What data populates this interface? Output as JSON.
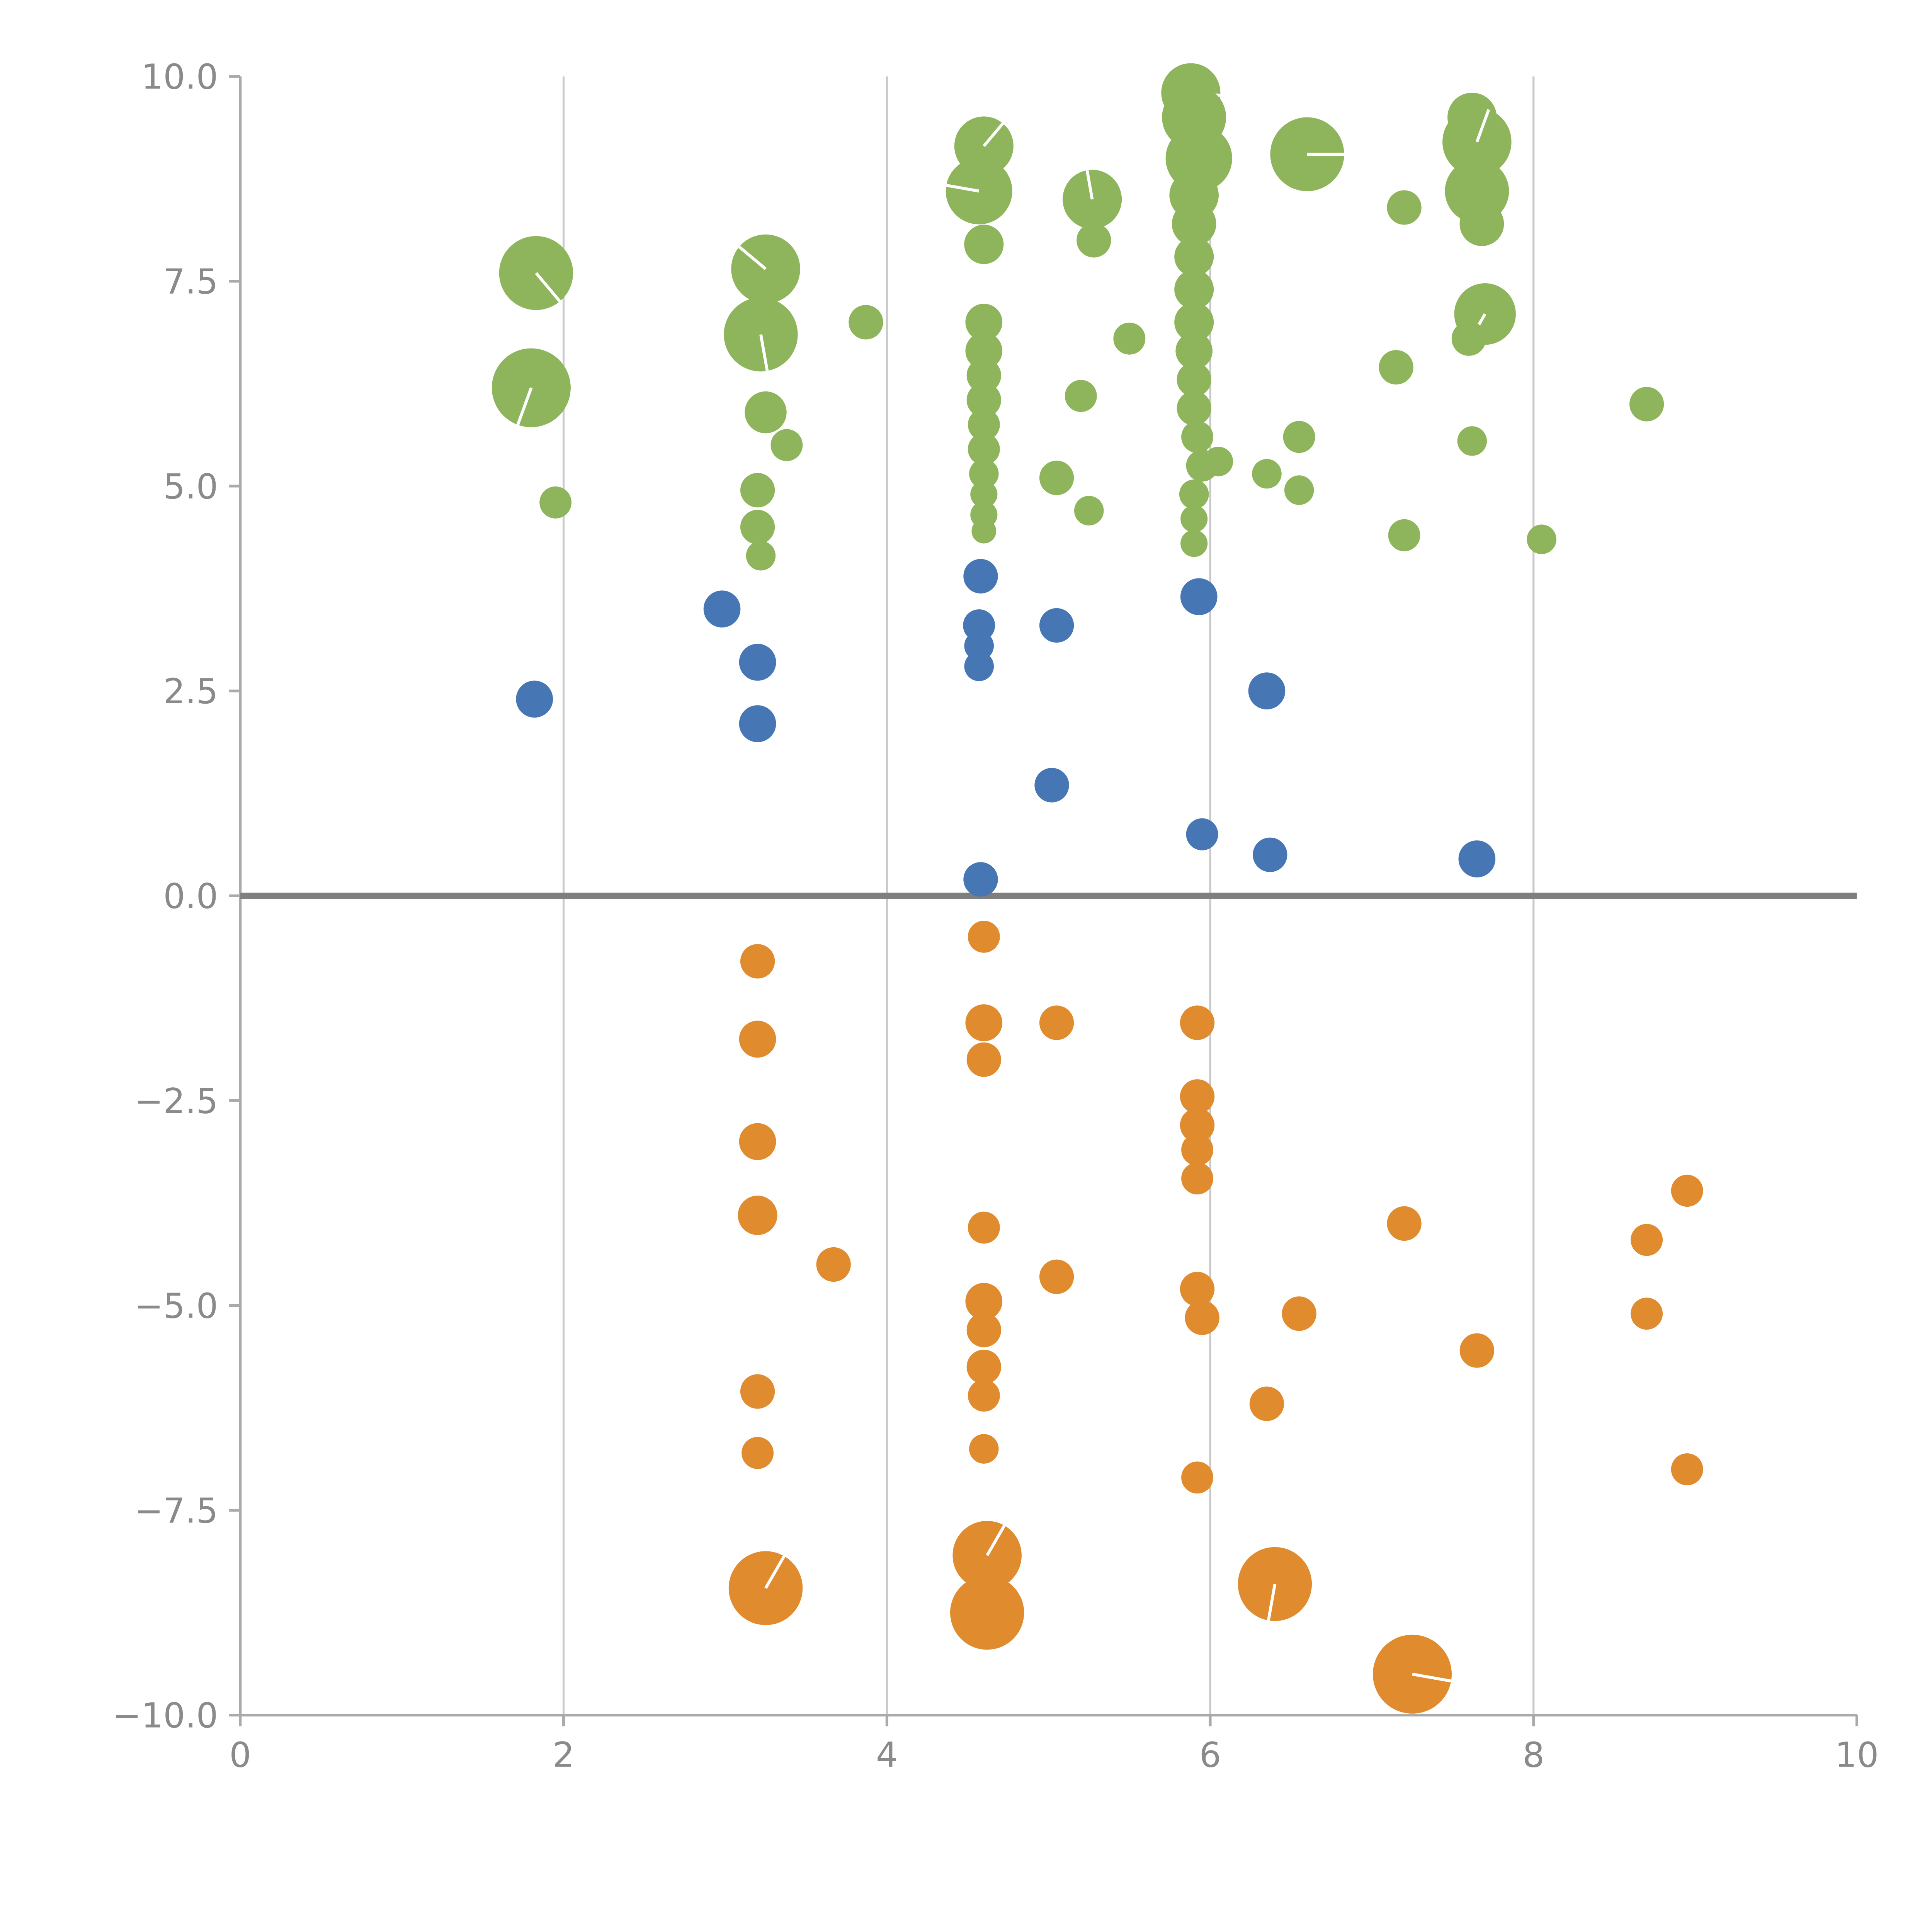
{
  "chart_data": {
    "type": "scatter",
    "title": "",
    "xlabel": "",
    "ylabel": "",
    "xlim": [
      0,
      10
    ],
    "ylim": [
      -10,
      10
    ],
    "x_ticks": [
      0,
      2,
      4,
      6,
      8,
      10
    ],
    "x_tick_labels": [
      "0",
      "2",
      "4",
      "6",
      "8",
      "10"
    ],
    "y_ticks": [
      -10,
      -7.5,
      -5,
      -2.5,
      0,
      2.5,
      5,
      7.5,
      10
    ],
    "y_tick_labels": [
      "−10.0",
      "−7.5",
      "−5.0",
      "−2.5",
      "0.0",
      "2.5",
      "5.0",
      "7.5",
      "10.0"
    ],
    "grid": "vertical",
    "zero_line": true,
    "legend": "none",
    "colors": {
      "grid": "#c9c9c9",
      "axis": "#aaaaaa",
      "zero_line": "#7f7f7f",
      "tick_text": "#8a8a8a",
      "bubble_line": "#ffffff"
    },
    "series": [
      {
        "name": "green",
        "color": "#8fb55c",
        "points": [
          [
            1.83,
            7.6,
            30,
            140
          ],
          [
            1.8,
            6.2,
            32,
            200
          ],
          [
            1.95,
            4.8,
            13
          ],
          [
            3.25,
            7.65,
            28,
            310
          ],
          [
            3.22,
            6.85,
            30,
            170
          ],
          [
            3.25,
            5.9,
            17
          ],
          [
            3.38,
            5.5,
            13
          ],
          [
            3.2,
            4.95,
            14
          ],
          [
            3.2,
            4.5,
            14
          ],
          [
            3.22,
            4.15,
            12
          ],
          [
            3.87,
            7.0,
            14
          ],
          [
            4.6,
            9.15,
            24,
            40
          ],
          [
            4.57,
            8.6,
            27,
            280
          ],
          [
            4.6,
            7.95,
            16
          ],
          [
            4.6,
            7.0,
            15
          ],
          [
            4.6,
            6.65,
            15
          ],
          [
            4.6,
            6.35,
            14
          ],
          [
            4.6,
            6.05,
            14
          ],
          [
            4.6,
            5.75,
            13
          ],
          [
            4.6,
            5.45,
            13
          ],
          [
            4.6,
            5.15,
            12
          ],
          [
            4.6,
            4.9,
            11
          ],
          [
            4.6,
            4.65,
            11
          ],
          [
            4.6,
            4.45,
            10
          ],
          [
            5.05,
            5.1,
            14
          ],
          [
            5.2,
            6.1,
            13
          ],
          [
            5.25,
            4.7,
            12
          ],
          [
            5.27,
            8.5,
            24,
            350
          ],
          [
            5.28,
            8.0,
            14
          ],
          [
            5.5,
            6.8,
            13
          ],
          [
            5.88,
            9.8,
            24,
            95
          ],
          [
            5.9,
            9.5,
            26
          ],
          [
            5.93,
            9.0,
            27
          ],
          [
            5.9,
            8.55,
            20
          ],
          [
            5.9,
            8.2,
            18
          ],
          [
            5.9,
            7.8,
            16
          ],
          [
            5.9,
            7.4,
            16
          ],
          [
            5.9,
            7.0,
            16
          ],
          [
            5.9,
            6.65,
            15
          ],
          [
            5.9,
            6.3,
            14
          ],
          [
            5.9,
            5.95,
            14
          ],
          [
            5.92,
            5.6,
            13
          ],
          [
            5.95,
            5.25,
            13
          ],
          [
            5.9,
            4.9,
            12
          ],
          [
            5.9,
            4.6,
            11
          ],
          [
            5.9,
            4.3,
            11
          ],
          [
            6.05,
            5.3,
            12
          ],
          [
            6.35,
            5.15,
            12
          ],
          [
            6.55,
            5.6,
            13
          ],
          [
            6.55,
            4.95,
            12
          ],
          [
            6.6,
            9.05,
            30,
            90
          ],
          [
            7.2,
            8.4,
            14
          ],
          [
            7.15,
            6.45,
            14
          ],
          [
            7.2,
            4.4,
            13
          ],
          [
            7.62,
            9.5,
            20
          ],
          [
            7.65,
            9.2,
            28,
            20
          ],
          [
            7.65,
            8.6,
            26
          ],
          [
            7.68,
            8.2,
            18
          ],
          [
            7.7,
            7.1,
            25,
            210
          ],
          [
            7.6,
            6.8,
            14
          ],
          [
            7.62,
            5.55,
            12
          ],
          [
            8.05,
            4.35,
            12
          ],
          [
            8.7,
            6.0,
            14
          ]
        ]
      },
      {
        "name": "blue",
        "color": "#4676b4",
        "points": [
          [
            1.82,
            2.4,
            15
          ],
          [
            2.98,
            3.5,
            15
          ],
          [
            3.2,
            2.85,
            15
          ],
          [
            3.2,
            2.1,
            15
          ],
          [
            4.58,
            3.9,
            14
          ],
          [
            4.57,
            3.3,
            13
          ],
          [
            4.57,
            3.05,
            12
          ],
          [
            4.57,
            2.8,
            12
          ],
          [
            5.05,
            3.3,
            14
          ],
          [
            5.02,
            1.35,
            14
          ],
          [
            5.93,
            3.65,
            15
          ],
          [
            5.95,
            0.75,
            13
          ],
          [
            6.35,
            2.5,
            15
          ],
          [
            6.37,
            0.5,
            14
          ],
          [
            7.65,
            0.45,
            15
          ],
          [
            4.58,
            0.2,
            14
          ]
        ]
      },
      {
        "name": "orange",
        "color": "#e08b2d",
        "points": [
          [
            3.2,
            -0.8,
            14
          ],
          [
            3.2,
            -1.75,
            15
          ],
          [
            3.2,
            -3.0,
            15
          ],
          [
            3.2,
            -3.9,
            16
          ],
          [
            3.67,
            -4.5,
            14
          ],
          [
            3.2,
            -6.05,
            14
          ],
          [
            3.2,
            -6.8,
            13
          ],
          [
            3.25,
            -8.45,
            30,
            30
          ],
          [
            4.6,
            -0.5,
            13
          ],
          [
            4.6,
            -1.55,
            15
          ],
          [
            4.6,
            -2.0,
            14
          ],
          [
            5.05,
            -1.55,
            14
          ],
          [
            4.6,
            -4.05,
            13
          ],
          [
            5.05,
            -4.65,
            14
          ],
          [
            4.6,
            -4.95,
            15
          ],
          [
            4.6,
            -5.3,
            14
          ],
          [
            4.6,
            -5.75,
            14
          ],
          [
            4.6,
            -6.1,
            13
          ],
          [
            4.6,
            -6.75,
            12
          ],
          [
            4.62,
            -8.05,
            28,
            30
          ],
          [
            4.62,
            -8.75,
            30
          ],
          [
            5.92,
            -1.55,
            14
          ],
          [
            5.92,
            -2.45,
            14
          ],
          [
            5.92,
            -2.8,
            14
          ],
          [
            5.92,
            -3.1,
            13
          ],
          [
            5.92,
            -3.45,
            13
          ],
          [
            5.92,
            -4.8,
            14
          ],
          [
            5.95,
            -5.15,
            14
          ],
          [
            6.55,
            -5.1,
            14
          ],
          [
            6.35,
            -6.2,
            14
          ],
          [
            5.92,
            -7.1,
            13
          ],
          [
            6.4,
            -8.4,
            30,
            190
          ],
          [
            7.2,
            -4.0,
            14
          ],
          [
            7.65,
            -5.55,
            14
          ],
          [
            7.25,
            -9.5,
            32,
            100
          ],
          [
            8.7,
            -4.2,
            13
          ],
          [
            8.95,
            -3.6,
            13
          ],
          [
            8.7,
            -5.1,
            13
          ],
          [
            8.95,
            -7.0,
            13
          ]
        ]
      }
    ]
  }
}
